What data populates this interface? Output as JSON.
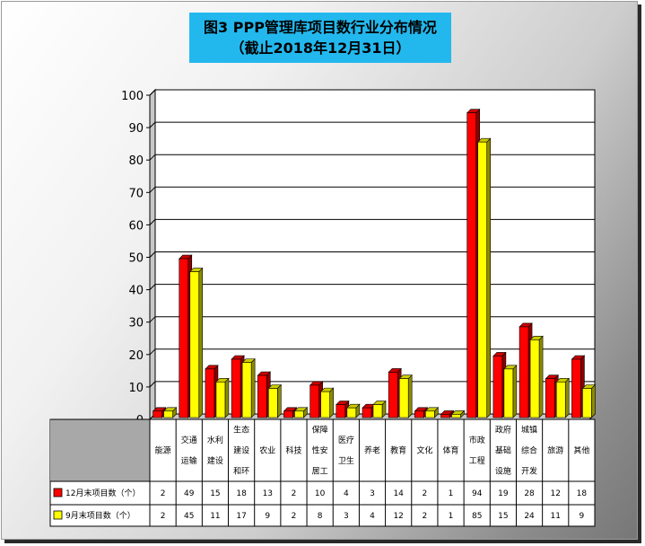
{
  "chart_data": {
    "type": "bar",
    "title": "图3 PPP管理库项目数行业分布情况",
    "subtitle": "（截止2018年12月31日）",
    "categories": [
      "能源",
      "交通运输",
      "水利建设",
      "生态建设和环",
      "农业",
      "科技",
      "保障性安居工",
      "医疗卫生",
      "养老",
      "教育",
      "文化",
      "体育",
      "市政工程",
      "政府基础设施",
      "城镇综合开发",
      "旅游",
      "其他"
    ],
    "category_lines": [
      [
        "能源"
      ],
      [
        "交通",
        "运输"
      ],
      [
        "水利",
        "建设"
      ],
      [
        "生态",
        "建设",
        "和环"
      ],
      [
        "农业"
      ],
      [
        "科技"
      ],
      [
        "保障",
        "性安",
        "居工"
      ],
      [
        "医疗",
        "卫生"
      ],
      [
        "养老"
      ],
      [
        "教育"
      ],
      [
        "文化"
      ],
      [
        "体育"
      ],
      [
        "市政",
        "工程"
      ],
      [
        "政府",
        "基础",
        "设施"
      ],
      [
        "城镇",
        "综合",
        "开发"
      ],
      [
        "旅游"
      ],
      [
        "其他"
      ]
    ],
    "series": [
      {
        "name": "12月末项目数（个）",
        "color": "#ff0000",
        "values": [
          2,
          49,
          15,
          18,
          13,
          2,
          10,
          4,
          3,
          14,
          2,
          1,
          94,
          19,
          28,
          12,
          18
        ],
        "labels": [
          "2",
          "49",
          "15",
          "18",
          "13",
          "2",
          "10",
          "4",
          "3",
          "14",
          "2",
          "1",
          "94",
          "19",
          "28",
          "12",
          "18"
        ]
      },
      {
        "name": "9月末项目数（个）",
        "color": "#ffff00",
        "values": [
          2,
          45,
          11,
          17,
          9,
          2,
          8,
          3,
          4,
          12,
          2,
          1,
          85,
          15,
          24,
          11,
          9
        ],
        "labels": [
          "2",
          "45",
          "11",
          "17",
          "9",
          "2",
          "8",
          "3",
          "4",
          "12",
          "2",
          "1",
          "85",
          "15",
          "24",
          "11",
          "9"
        ]
      }
    ],
    "ylim": [
      0,
      100
    ],
    "yticks": [
      0,
      10,
      20,
      30,
      40,
      50,
      60,
      70,
      80,
      90,
      100
    ],
    "grid": true,
    "legend_position": "data-table"
  }
}
